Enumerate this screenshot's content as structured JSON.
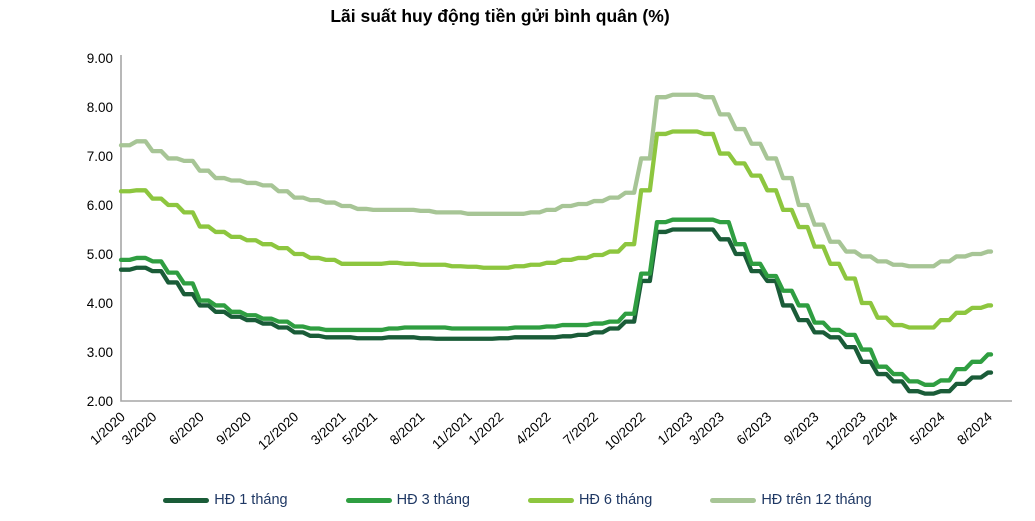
{
  "chart_data": {
    "type": "line",
    "title": "Lãi suất huy động tiền gửi bình quân (%)",
    "xlabel": "",
    "ylabel": "",
    "ylim": [
      2,
      9
    ],
    "y_ticks": [
      "9.00",
      "8.00",
      "7.00",
      "6.00",
      "5.00",
      "4.00",
      "3.00",
      "2.00"
    ],
    "grid": false,
    "legend_position": "bottom",
    "axis_color": "#a6a6a6",
    "tick_text_color": "#000000",
    "x": [
      "1/2020",
      "2/2020",
      "3/2020",
      "4/2020",
      "5/2020",
      "6/2020",
      "7/2020",
      "8/2020",
      "9/2020",
      "10/2020",
      "11/2020",
      "12/2020",
      "1/2021",
      "2/2021",
      "3/2021",
      "4/2021",
      "5/2021",
      "6/2021",
      "7/2021",
      "8/2021",
      "9/2021",
      "10/2021",
      "11/2021",
      "12/2021",
      "1/2022",
      "2/2022",
      "3/2022",
      "4/2022",
      "5/2022",
      "6/2022",
      "7/2022",
      "8/2022",
      "9/2022",
      "10/2022",
      "11/2022",
      "12/2022",
      "1/2023",
      "2/2023",
      "3/2023",
      "4/2023",
      "5/2023",
      "6/2023",
      "7/2023",
      "8/2023",
      "9/2023",
      "10/2023",
      "11/2023",
      "12/2023",
      "1/2024",
      "2/2024",
      "3/2024",
      "4/2024",
      "5/2024",
      "6/2024",
      "7/2024",
      "8/2024"
    ],
    "x_tick_labels": [
      "1/2020",
      "3/2020",
      "6/2020",
      "9/2020",
      "12/2020",
      "3/2021",
      "5/2021",
      "8/2021",
      "11/2021",
      "1/2022",
      "4/2022",
      "7/2022",
      "10/2022",
      "1/2023",
      "3/2023",
      "6/2023",
      "9/2023",
      "12/2023",
      "2/2024",
      "5/2024",
      "8/2024"
    ],
    "x_tick_indices": [
      0,
      2,
      5,
      8,
      11,
      14,
      16,
      19,
      22,
      24,
      27,
      30,
      33,
      36,
      38,
      41,
      44,
      47,
      49,
      52,
      55
    ],
    "series": [
      {
        "name": "HĐ 1 tháng",
        "slug": "series-line-1-thang",
        "color": "#1a5c38",
        "values": [
          4.68,
          4.72,
          4.65,
          4.42,
          4.18,
          3.95,
          3.82,
          3.72,
          3.65,
          3.58,
          3.5,
          3.4,
          3.33,
          3.3,
          3.3,
          3.28,
          3.28,
          3.3,
          3.3,
          3.28,
          3.27,
          3.27,
          3.27,
          3.27,
          3.28,
          3.3,
          3.3,
          3.3,
          3.32,
          3.35,
          3.4,
          3.48,
          3.62,
          4.45,
          5.45,
          5.5,
          5.5,
          5.5,
          5.3,
          5.0,
          4.65,
          4.45,
          3.95,
          3.65,
          3.4,
          3.3,
          3.1,
          2.8,
          2.55,
          2.4,
          2.2,
          2.15,
          2.2,
          2.35,
          2.48,
          2.58
        ]
      },
      {
        "name": "HĐ 3 tháng",
        "slug": "series-line-3-thang",
        "color": "#2f9e41",
        "values": [
          4.88,
          4.92,
          4.85,
          4.62,
          4.4,
          4.05,
          3.95,
          3.82,
          3.75,
          3.68,
          3.62,
          3.52,
          3.48,
          3.45,
          3.45,
          3.45,
          3.45,
          3.48,
          3.5,
          3.5,
          3.5,
          3.48,
          3.48,
          3.48,
          3.48,
          3.5,
          3.5,
          3.52,
          3.55,
          3.55,
          3.58,
          3.62,
          3.78,
          4.6,
          5.65,
          5.7,
          5.7,
          5.7,
          5.65,
          5.2,
          4.8,
          4.55,
          4.25,
          3.95,
          3.6,
          3.45,
          3.35,
          3.05,
          2.7,
          2.55,
          2.4,
          2.33,
          2.42,
          2.65,
          2.8,
          2.95
        ]
      },
      {
        "name": "HĐ 6 tháng",
        "slug": "series-line-6-thang",
        "color": "#8dc63f",
        "values": [
          6.28,
          6.3,
          6.13,
          6.0,
          5.85,
          5.56,
          5.45,
          5.35,
          5.28,
          5.2,
          5.12,
          5.0,
          4.92,
          4.88,
          4.8,
          4.8,
          4.8,
          4.82,
          4.8,
          4.78,
          4.78,
          4.75,
          4.74,
          4.72,
          4.72,
          4.75,
          4.78,
          4.82,
          4.88,
          4.92,
          4.98,
          5.05,
          5.2,
          6.3,
          7.45,
          7.5,
          7.5,
          7.45,
          7.05,
          6.85,
          6.6,
          6.3,
          5.9,
          5.55,
          5.15,
          4.8,
          4.5,
          4.0,
          3.7,
          3.55,
          3.5,
          3.5,
          3.65,
          3.8,
          3.9,
          3.95
        ]
      },
      {
        "name": "HĐ trên 12 tháng",
        "slug": "series-line-tren-12-thang",
        "color": "#a7c596",
        "values": [
          7.22,
          7.3,
          7.1,
          6.95,
          6.9,
          6.7,
          6.55,
          6.5,
          6.45,
          6.4,
          6.28,
          6.15,
          6.1,
          6.05,
          5.98,
          5.92,
          5.9,
          5.9,
          5.9,
          5.88,
          5.85,
          5.85,
          5.82,
          5.82,
          5.82,
          5.82,
          5.85,
          5.9,
          5.98,
          6.02,
          6.08,
          6.15,
          6.25,
          6.95,
          8.2,
          8.25,
          8.25,
          8.2,
          7.85,
          7.55,
          7.25,
          6.95,
          6.55,
          6.0,
          5.6,
          5.25,
          5.05,
          4.95,
          4.85,
          4.78,
          4.75,
          4.75,
          4.85,
          4.95,
          5.0,
          5.05
        ]
      }
    ]
  }
}
